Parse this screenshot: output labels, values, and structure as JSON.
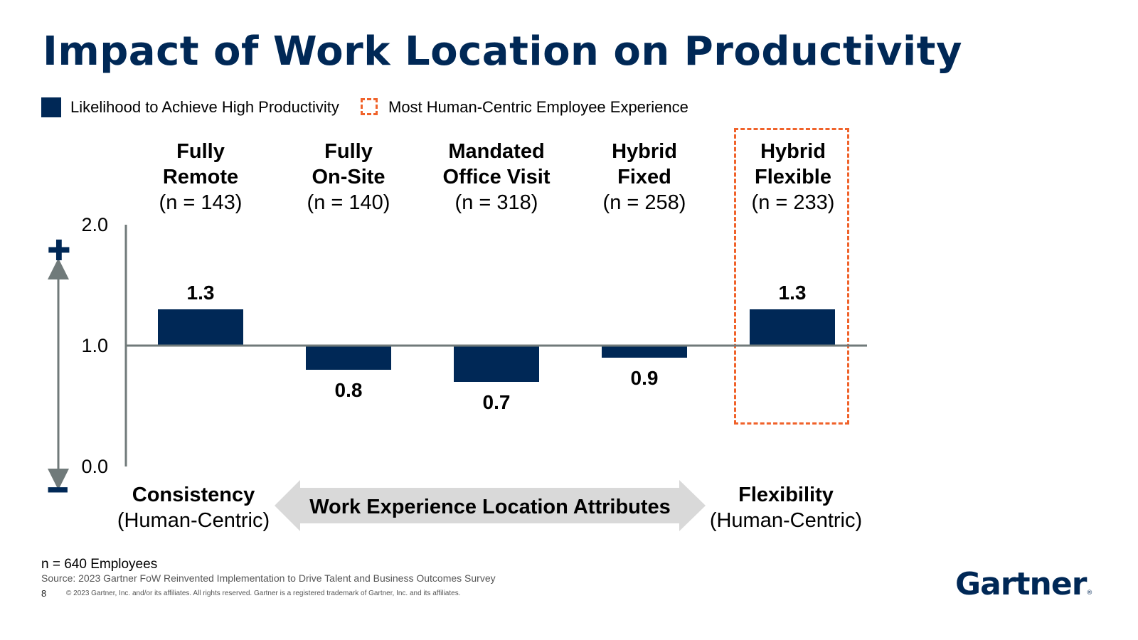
{
  "title": "Impact of Work Location on Productivity",
  "legend": {
    "bar_label": "Likelihood to Achieve High Productivity",
    "highlight_label": "Most Human-Centric Employee Experience"
  },
  "colors": {
    "bar": "#002856",
    "highlight": "#f0622a",
    "axis": "#707a7a",
    "arrow": "#d9d9d9"
  },
  "chart_data": {
    "type": "bar",
    "title": "Impact of Work Location on Productivity",
    "ylim": [
      0,
      2
    ],
    "baseline": 1.0,
    "yticks": [
      "0.0",
      "1.0",
      "2.0"
    ],
    "categories": [
      {
        "name_line1": "Fully",
        "name_line2": "Remote",
        "n": "(n = 143)",
        "value": 1.3,
        "label": "1.3"
      },
      {
        "name_line1": "Fully",
        "name_line2": "On-Site",
        "n": "(n = 140)",
        "value": 0.8,
        "label": "0.8"
      },
      {
        "name_line1": "Mandated",
        "name_line2": "Office Visit",
        "n": "(n = 318)",
        "value": 0.7,
        "label": "0.7"
      },
      {
        "name_line1": "Hybrid",
        "name_line2": "Fixed",
        "n": "(n = 258)",
        "value": 0.9,
        "label": "0.9"
      },
      {
        "name_line1": "Hybrid",
        "name_line2": "Flexible",
        "n": "(n = 233)",
        "value": 1.3,
        "label": "1.3"
      }
    ],
    "series": [
      {
        "name": "Likelihood to Achieve High Productivity",
        "values": [
          1.3,
          0.8,
          0.7,
          0.9,
          1.3
        ]
      }
    ],
    "highlighted_category": "Hybrid Flexible"
  },
  "signs": {
    "plus": "✚",
    "minus": "━"
  },
  "attributes": {
    "left_title": "Consistency",
    "left_sub": "(Human-Centric)",
    "center": "Work Experience Location Attributes",
    "right_title": "Flexibility",
    "right_sub": "(Human-Centric)"
  },
  "footer": {
    "n": "n = 640 Employees",
    "source": "Source: 2023 Gartner FoW Reinvented Implementation to Drive Talent and Business Outcomes Survey",
    "page": "8",
    "copyright": "© 2023 Gartner, Inc. and/or its affiliates. All rights reserved. Gartner is a registered trademark of Gartner, Inc. and its affiliates."
  },
  "logo": {
    "text": "Gartner",
    "mark": "®"
  }
}
